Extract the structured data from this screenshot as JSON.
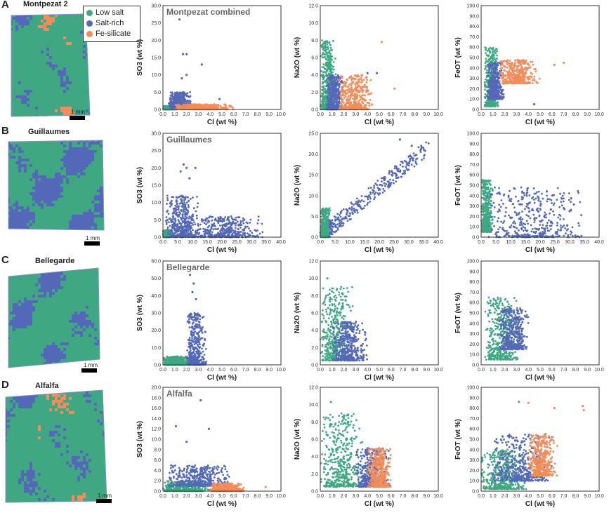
{
  "colors": {
    "low_salt": "#3fa882",
    "salt_rich": "#5468b8",
    "fe_silicate": "#f28c5a"
  },
  "legend": {
    "low_salt": "Low salt",
    "salt_rich": "Salt-rich",
    "fe_silicate": "Fe-silicate"
  },
  "scale_bar_label": "1 mm",
  "rows": [
    {
      "letter": "A",
      "map_title": "Montpezat 2",
      "plot_title": "Montpezat combined"
    },
    {
      "letter": "B",
      "map_title": "Guillaumes",
      "plot_title": "Guillaumes"
    },
    {
      "letter": "C",
      "map_title": "Bellegarde",
      "plot_title": "Bellegarde"
    },
    {
      "letter": "D",
      "map_title": "Alfalfa",
      "plot_title": "Alfalfa"
    }
  ],
  "chart_data": [
    {
      "type": "scatter",
      "row": "A",
      "title": "Montpezat combined",
      "xlabel": "Cl (wt %)",
      "ylabel": "SO3 (wt %)",
      "xlim": [
        0,
        10
      ],
      "ylim": [
        0,
        30
      ],
      "xticks": [
        0,
        1,
        2,
        3,
        4,
        5,
        6,
        7,
        8,
        9,
        10
      ],
      "yticks": [
        0,
        5,
        10,
        15,
        20,
        25,
        30
      ],
      "clusters": [
        {
          "series": "low_salt",
          "x": [
            0,
            1.2
          ],
          "y": [
            0,
            1
          ]
        },
        {
          "series": "salt_rich",
          "x": [
            0.5,
            2.5
          ],
          "y": [
            0.5,
            5
          ]
        },
        {
          "series": "fe_silicate",
          "x": [
            1,
            6
          ],
          "y": [
            0,
            1.5
          ]
        }
      ],
      "outliers": [
        {
          "series": "salt_rich",
          "x": 1.4,
          "y": 26
        },
        {
          "series": "salt_rich",
          "x": 1.7,
          "y": 16
        },
        {
          "series": "salt_rich",
          "x": 2,
          "y": 16
        },
        {
          "series": "salt_rich",
          "x": 3.3,
          "y": 13
        },
        {
          "series": "salt_rich",
          "x": 2,
          "y": 10
        },
        {
          "series": "salt_rich",
          "x": 1.6,
          "y": 9
        },
        {
          "series": "salt_rich",
          "x": 4.8,
          "y": 3
        }
      ]
    },
    {
      "type": "scatter",
      "row": "A",
      "xlabel": "Cl (wt %)",
      "ylabel": "Na2O (wt %)",
      "xlim": [
        0,
        10
      ],
      "ylim": [
        0,
        12
      ],
      "xticks": [
        0,
        1,
        2,
        3,
        4,
        5,
        6,
        7,
        8,
        9,
        10
      ],
      "yticks": [
        0,
        2,
        4,
        6,
        8,
        10,
        12
      ],
      "clusters": [
        {
          "series": "low_salt",
          "x": [
            0,
            1.4
          ],
          "y": [
            0,
            8
          ]
        },
        {
          "series": "salt_rich",
          "x": [
            0.5,
            2
          ],
          "y": [
            0,
            4
          ]
        },
        {
          "series": "fe_silicate",
          "x": [
            1.5,
            4.5
          ],
          "y": [
            0,
            4
          ]
        }
      ],
      "outliers": [
        {
          "series": "fe_silicate",
          "x": 5.2,
          "y": 7.8
        },
        {
          "series": "fe_silicate",
          "x": 6.3,
          "y": 2.4
        },
        {
          "series": "salt_rich",
          "x": 4.8,
          "y": 4.2
        },
        {
          "series": "salt_rich",
          "x": 4,
          "y": 4.2
        }
      ]
    },
    {
      "type": "scatter",
      "row": "A",
      "xlabel": "Cl (wt %)",
      "ylabel": "FeOT (wt %)",
      "xlim": [
        0,
        10
      ],
      "ylim": [
        0,
        100
      ],
      "xticks": [
        0,
        1,
        2,
        3,
        4,
        5,
        6,
        7,
        8,
        9,
        10
      ],
      "yticks": [
        0,
        10,
        20,
        30,
        40,
        50,
        60,
        70,
        80,
        90,
        100
      ],
      "clusters": [
        {
          "series": "low_salt",
          "x": [
            0.3,
            1.5
          ],
          "y": [
            3,
            60
          ]
        },
        {
          "series": "salt_rich",
          "x": [
            0.5,
            2
          ],
          "y": [
            10,
            45
          ]
        },
        {
          "series": "fe_silicate",
          "x": [
            1.5,
            5
          ],
          "y": [
            25,
            48
          ]
        }
      ],
      "outliers": [
        {
          "series": "fe_silicate",
          "x": 6.2,
          "y": 43
        },
        {
          "series": "fe_silicate",
          "x": 7,
          "y": 45
        },
        {
          "series": "salt_rich",
          "x": 4.5,
          "y": 5
        }
      ]
    },
    {
      "type": "scatter",
      "row": "B",
      "title": "Guillaumes",
      "xlabel": "Cl (wt %)",
      "ylabel": "SO3 (wt %)",
      "xlim": [
        0,
        40
      ],
      "ylim": [
        0,
        30
      ],
      "xticks": [
        0,
        5,
        10,
        15,
        20,
        25,
        30,
        35,
        40
      ],
      "yticks": [
        0,
        5,
        10,
        15,
        20,
        25,
        30
      ],
      "clusters": [
        {
          "series": "low_salt",
          "x": [
            0,
            3
          ],
          "y": [
            0,
            2
          ]
        },
        {
          "series": "salt_rich",
          "x": [
            1,
            12
          ],
          "y": [
            0,
            12
          ]
        },
        {
          "series": "salt_rich",
          "x": [
            8,
            35
          ],
          "y": [
            0,
            6
          ]
        }
      ],
      "outliers": [
        {
          "series": "salt_rich",
          "x": 7,
          "y": 21
        },
        {
          "series": "salt_rich",
          "x": 8,
          "y": 20
        },
        {
          "series": "salt_rich",
          "x": 11,
          "y": 20
        },
        {
          "series": "salt_rich",
          "x": 6,
          "y": 19
        },
        {
          "series": "salt_rich",
          "x": 9,
          "y": 17
        }
      ]
    },
    {
      "type": "scatter",
      "row": "B",
      "xlabel": "Cl (wt %)",
      "ylabel": "Na2O (wt %)",
      "xlim": [
        0,
        40
      ],
      "ylim": [
        0,
        25
      ],
      "xticks": [
        0,
        5,
        10,
        15,
        20,
        25,
        30,
        35,
        40
      ],
      "yticks": [
        0,
        5,
        10,
        15,
        20,
        25
      ],
      "clusters": [
        {
          "series": "low_salt",
          "x": [
            0,
            3.5
          ],
          "y": [
            0,
            7
          ]
        },
        {
          "series": "salt_rich",
          "x": [
            3,
            37
          ],
          "y": [
            2,
            22
          ],
          "linear": true
        }
      ],
      "outliers": [
        {
          "series": "salt_rich",
          "x": 27,
          "y": 23.5
        },
        {
          "series": "salt_rich",
          "x": 31,
          "y": 22
        }
      ]
    },
    {
      "type": "scatter",
      "row": "B",
      "xlabel": "Cl (wt %)",
      "ylabel": "FeOT (wt %)",
      "xlim": [
        0,
        40
      ],
      "ylim": [
        0,
        100
      ],
      "xticks": [
        0,
        5,
        10,
        15,
        20,
        25,
        30,
        35,
        40
      ],
      "yticks": [
        0,
        10,
        20,
        30,
        40,
        50,
        60,
        70,
        80,
        90,
        100
      ],
      "clusters": [
        {
          "series": "low_salt",
          "x": [
            0,
            4
          ],
          "y": [
            5,
            55
          ]
        },
        {
          "series": "salt_rich",
          "x": [
            2,
            36
          ],
          "y": [
            0,
            48
          ]
        }
      ],
      "outliers": [
        {
          "series": "salt_rich",
          "x": 28,
          "y": 28
        },
        {
          "series": "salt_rich",
          "x": 30,
          "y": 25
        }
      ]
    },
    {
      "type": "scatter",
      "row": "C",
      "title": "Bellegarde",
      "xlabel": "Cl (wt %)",
      "ylabel": "SO3 (wt %)",
      "xlim": [
        0,
        10
      ],
      "ylim": [
        0,
        60
      ],
      "xticks": [
        0,
        1,
        2,
        3,
        4,
        5,
        6,
        7,
        8,
        9,
        10
      ],
      "yticks": [
        0,
        10,
        20,
        30,
        40,
        50,
        60
      ],
      "clusters": [
        {
          "series": "low_salt",
          "x": [
            0,
            2.5
          ],
          "y": [
            0,
            5
          ]
        },
        {
          "series": "salt_rich",
          "x": [
            2,
            3.7
          ],
          "y": [
            0,
            30
          ]
        }
      ],
      "outliers": [
        {
          "series": "salt_rich",
          "x": 2.3,
          "y": 52
        },
        {
          "series": "salt_rich",
          "x": 2.6,
          "y": 47
        },
        {
          "series": "salt_rich",
          "x": 2.5,
          "y": 42
        },
        {
          "series": "salt_rich",
          "x": 2.8,
          "y": 38
        }
      ]
    },
    {
      "type": "scatter",
      "row": "C",
      "xlabel": "Cl (wt %)",
      "ylabel": "Na2O (wt %)",
      "xlim": [
        0,
        10
      ],
      "ylim": [
        0,
        12
      ],
      "xticks": [
        0,
        1,
        2,
        3,
        4,
        5,
        6,
        7,
        8,
        9,
        10
      ],
      "yticks": [
        0,
        2,
        4,
        6,
        8,
        10,
        12
      ],
      "clusters": [
        {
          "series": "low_salt",
          "x": [
            0,
            3
          ],
          "y": [
            0.5,
            9
          ]
        },
        {
          "series": "salt_rich",
          "x": [
            1,
            4
          ],
          "y": [
            0.5,
            5
          ]
        }
      ],
      "outliers": [
        {
          "series": "low_salt",
          "x": 0.6,
          "y": 10
        }
      ]
    },
    {
      "type": "scatter",
      "row": "C",
      "xlabel": "Cl (wt %)",
      "ylabel": "FeOT (wt %)",
      "xlim": [
        0,
        10
      ],
      "ylim": [
        0,
        100
      ],
      "xticks": [
        0,
        1,
        2,
        3,
        4,
        5,
        6,
        7,
        8,
        9,
        10
      ],
      "yticks": [
        0,
        10,
        20,
        30,
        40,
        50,
        60,
        70,
        80,
        90,
        100
      ],
      "clusters": [
        {
          "series": "low_salt",
          "x": [
            0.3,
            3.5
          ],
          "y": [
            5,
            65
          ]
        },
        {
          "series": "salt_rich",
          "x": [
            1.5,
            4.2
          ],
          "y": [
            15,
            55
          ]
        }
      ],
      "outliers": []
    },
    {
      "type": "scatter",
      "row": "D",
      "title": "Alfalfa",
      "xlabel": "Cl (wt %)",
      "ylabel": "SO3 (wt %)",
      "xlim": [
        0,
        10
      ],
      "ylim": [
        0,
        20
      ],
      "xticks": [
        0,
        1,
        2,
        3,
        4,
        5,
        6,
        7,
        8,
        9,
        10
      ],
      "yticks": [
        0,
        2,
        4,
        6,
        8,
        10,
        12,
        14,
        16,
        18,
        20
      ],
      "clusters": [
        {
          "series": "low_salt",
          "x": [
            0,
            4
          ],
          "y": [
            0,
            2
          ]
        },
        {
          "series": "salt_rich",
          "x": [
            0.5,
            6
          ],
          "y": [
            1,
            5
          ]
        },
        {
          "series": "fe_silicate",
          "x": [
            4,
            7
          ],
          "y": [
            0,
            1.5
          ]
        }
      ],
      "outliers": [
        {
          "series": "salt_rich",
          "x": 3.2,
          "y": 17.5
        },
        {
          "series": "salt_rich",
          "x": 1.1,
          "y": 12.5
        },
        {
          "series": "salt_rich",
          "x": 3.9,
          "y": 12
        },
        {
          "series": "salt_rich",
          "x": 2,
          "y": 9.5
        },
        {
          "series": "fe_silicate",
          "x": 8.7,
          "y": 0.8
        }
      ]
    },
    {
      "type": "scatter",
      "row": "D",
      "xlabel": "Cl (wt %)",
      "ylabel": "Na2O (wt %)",
      "xlim": [
        0,
        10
      ],
      "ylim": [
        0,
        12
      ],
      "xticks": [
        0,
        1,
        2,
        3,
        4,
        5,
        6,
        7,
        8,
        9,
        10
      ],
      "yticks": [
        0,
        2,
        4,
        6,
        8,
        10,
        12
      ],
      "clusters": [
        {
          "series": "low_salt",
          "x": [
            0,
            4
          ],
          "y": [
            0.5,
            9
          ]
        },
        {
          "series": "salt_rich",
          "x": [
            3,
            6
          ],
          "y": [
            0.5,
            5
          ]
        },
        {
          "series": "fe_silicate",
          "x": [
            4,
            6
          ],
          "y": [
            0.5,
            5
          ]
        }
      ],
      "outliers": [
        {
          "series": "low_salt",
          "x": 0.9,
          "y": 10.3
        }
      ]
    },
    {
      "type": "scatter",
      "row": "D",
      "xlabel": "Cl (wt %)",
      "ylabel": "FeOT (wt %)",
      "xlim": [
        0,
        10
      ],
      "ylim": [
        0,
        100
      ],
      "xticks": [
        0,
        1,
        2,
        3,
        4,
        5,
        6,
        7,
        8,
        9,
        10
      ],
      "yticks": [
        0,
        10,
        20,
        30,
        40,
        50,
        60,
        70,
        80,
        90,
        100
      ],
      "clusters": [
        {
          "series": "low_salt",
          "x": [
            0,
            4
          ],
          "y": [
            2,
            40
          ]
        },
        {
          "series": "salt_rich",
          "x": [
            1,
            6
          ],
          "y": [
            10,
            55
          ]
        },
        {
          "series": "fe_silicate",
          "x": [
            4,
            6.5
          ],
          "y": [
            15,
            55
          ]
        }
      ],
      "outliers": [
        {
          "series": "fe_silicate",
          "x": 8.6,
          "y": 82
        },
        {
          "series": "fe_silicate",
          "x": 8.7,
          "y": 78
        },
        {
          "series": "fe_silicate",
          "x": 4,
          "y": 85
        },
        {
          "series": "low_salt",
          "x": 3.2,
          "y": 86
        },
        {
          "series": "fe_silicate",
          "x": 6.2,
          "y": 80
        }
      ]
    }
  ]
}
